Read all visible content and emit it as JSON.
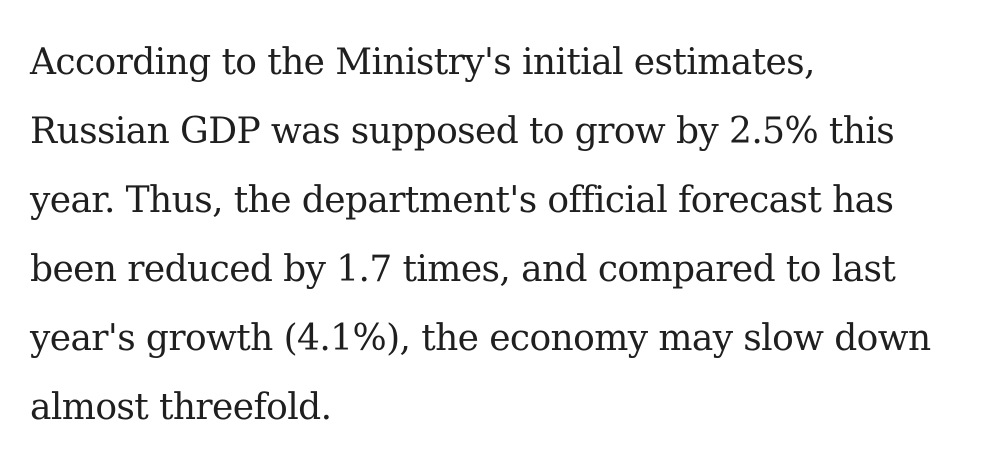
{
  "article": {
    "lines": [
      "According to the Ministry's initial estimates,",
      "Russian GDP was supposed to grow by 2.5% this",
      "year. Thus, the department's official forecast has",
      "been reduced by 1.7 times, and compared to last",
      "year's growth (4.1%), the economy may slow down",
      "almost threefold."
    ]
  }
}
